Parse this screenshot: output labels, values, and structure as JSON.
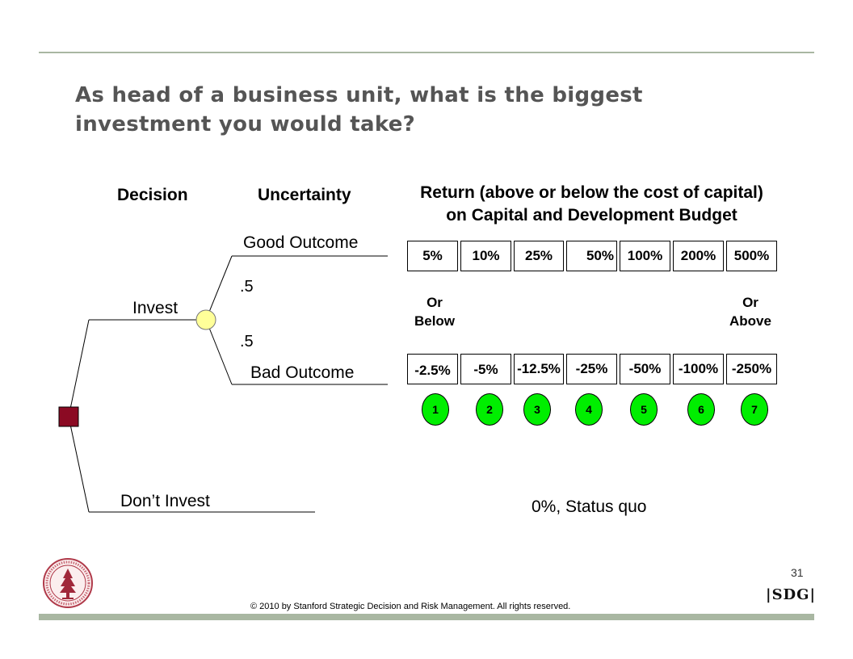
{
  "title": "As head of a business unit, what is the biggest investment you would take?",
  "headers": {
    "decision": "Decision",
    "uncertainty": "Uncertainty",
    "return_line1": "Return (above or below the cost of capital)",
    "return_line2": "on Capital and Development Budget"
  },
  "tree": {
    "invest": "Invest",
    "dont_invest": "Don’t Invest",
    "good_outcome": "Good Outcome",
    "bad_outcome": "Bad Outcome",
    "prob_good": ".5",
    "prob_bad": ".5",
    "decision_node_color": "#8b0a23",
    "chance_node_color": "#ffff99"
  },
  "good_returns": [
    "5%",
    "10%",
    "25%",
    "50%",
    "100%",
    "200%",
    "500%"
  ],
  "bad_returns": [
    "-2.5%",
    "-5%",
    "-12.5%",
    "-25%",
    "-50%",
    "-100%",
    "-250%"
  ],
  "or_below": [
    "Or",
    "Below"
  ],
  "or_above": [
    "Or",
    "Above"
  ],
  "options": [
    "1",
    "2",
    "3",
    "4",
    "5",
    "6",
    "7"
  ],
  "option_color": "#00ee00",
  "status_quo": "0%, Status quo",
  "page_number": "31",
  "copyright": "© 2010 by Stanford Strategic Decision and Risk Management. All rights reserved.",
  "logo": "SDG",
  "seal_icon": "stanford-seal-icon"
}
